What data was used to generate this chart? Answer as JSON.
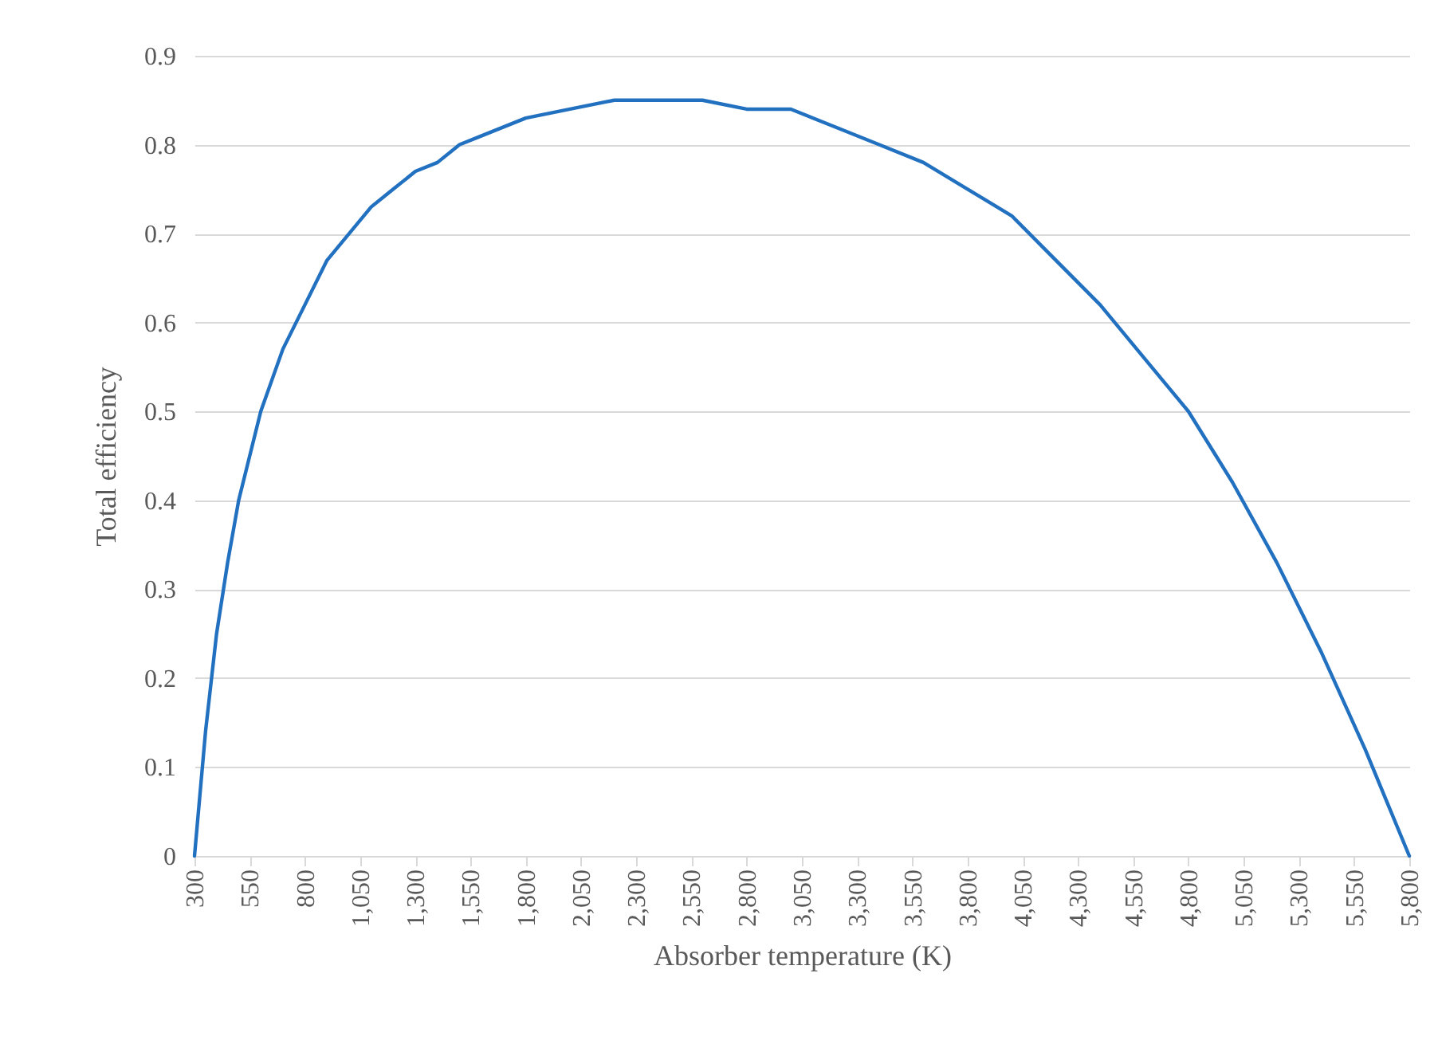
{
  "chart_data": {
    "type": "line",
    "xlabel": "Absorber temperature (K)",
    "ylabel": "Total efficiency",
    "x": [
      300,
      350,
      400,
      450,
      500,
      550,
      600,
      700,
      800,
      900,
      1000,
      1100,
      1200,
      1300,
      1400,
      1500,
      1600,
      1800,
      2000,
      2200,
      2400,
      2600,
      2800,
      3000,
      3200,
      3400,
      3600,
      3800,
      4000,
      4200,
      4400,
      4600,
      4800,
      5000,
      5200,
      5400,
      5600,
      5700,
      5800
    ],
    "series": [
      {
        "color": "#2270c0",
        "values": [
          0,
          0.14,
          0.25,
          0.33,
          0.4,
          0.45,
          0.5,
          0.57,
          0.62,
          0.67,
          0.7,
          0.73,
          0.75,
          0.77,
          0.78,
          0.8,
          0.81,
          0.83,
          0.84,
          0.85,
          0.85,
          0.85,
          0.84,
          0.84,
          0.82,
          0.8,
          0.78,
          0.75,
          0.72,
          0.67,
          0.62,
          0.56,
          0.5,
          0.42,
          0.33,
          0.23,
          0.12,
          0.06,
          0
        ]
      }
    ],
    "xlim": [
      300,
      5800
    ],
    "xticks": [
      300,
      550,
      800,
      {
        "value": 1050,
        "label": "1,050"
      },
      {
        "value": 1300,
        "label": "1,300"
      },
      {
        "value": 1550,
        "label": "1,550"
      },
      {
        "value": 1800,
        "label": "1,800"
      },
      {
        "value": 2050,
        "label": "2,050"
      },
      {
        "value": 2300,
        "label": "2,300"
      },
      {
        "value": 2550,
        "label": "2,550"
      },
      {
        "value": 2800,
        "label": "2,800"
      },
      {
        "value": 3050,
        "label": "3,050"
      },
      {
        "value": 3300,
        "label": "3,300"
      },
      {
        "value": 3550,
        "label": "3,550"
      },
      {
        "value": 3800,
        "label": "3,800"
      },
      {
        "value": 4050,
        "label": "4,050"
      },
      {
        "value": 4300,
        "label": "4,300"
      },
      {
        "value": 4550,
        "label": "4,550"
      },
      {
        "value": 4800,
        "label": "4,800"
      },
      {
        "value": 5050,
        "label": "5,050"
      },
      {
        "value": 5300,
        "label": "5,300"
      },
      {
        "value": 5550,
        "label": "5,550"
      },
      {
        "value": 5800,
        "label": "5,800"
      }
    ],
    "ylim": [
      0,
      0.9
    ],
    "yticks": [
      0,
      0.1,
      0.2,
      0.3,
      0.4,
      0.5,
      0.6,
      0.7,
      0.8,
      0.9
    ],
    "grid": "y"
  }
}
